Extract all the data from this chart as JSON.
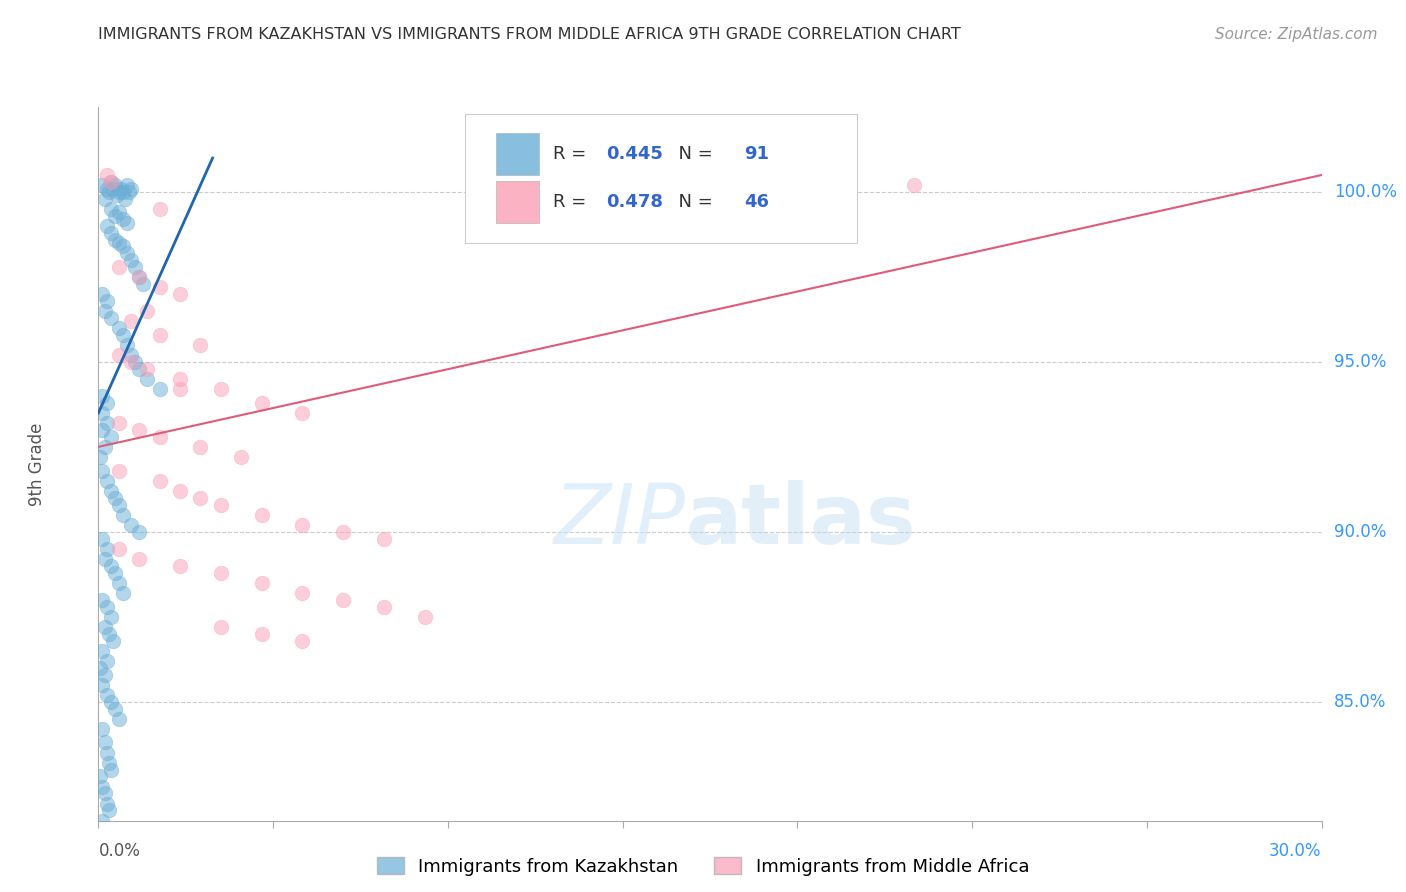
{
  "title": "IMMIGRANTS FROM KAZAKHSTAN VS IMMIGRANTS FROM MIDDLE AFRICA 9TH GRADE CORRELATION CHART",
  "source": "Source: ZipAtlas.com",
  "ylabel": "9th Grade",
  "legend_r_kaz": "0.445",
  "legend_n_kaz": "91",
  "legend_r_mid": "0.478",
  "legend_n_mid": "46",
  "blue_color": "#6baed6",
  "pink_color": "#fa9fb5",
  "blue_line_color": "#2166ac",
  "pink_line_color": "#e05a7a",
  "blue_scatter": [
    [
      0.1,
      100.2
    ],
    [
      0.2,
      100.1
    ],
    [
      0.3,
      100.3
    ],
    [
      0.15,
      99.8
    ],
    [
      0.25,
      100.0
    ],
    [
      0.35,
      100.1
    ],
    [
      0.4,
      100.2
    ],
    [
      0.5,
      100.0
    ],
    [
      0.45,
      99.9
    ],
    [
      0.55,
      100.1
    ],
    [
      0.6,
      100.0
    ],
    [
      0.65,
      99.8
    ],
    [
      0.7,
      100.2
    ],
    [
      0.75,
      100.0
    ],
    [
      0.8,
      100.1
    ],
    [
      0.3,
      99.5
    ],
    [
      0.4,
      99.3
    ],
    [
      0.5,
      99.4
    ],
    [
      0.6,
      99.2
    ],
    [
      0.7,
      99.1
    ],
    [
      0.2,
      99.0
    ],
    [
      0.3,
      98.8
    ],
    [
      0.4,
      98.6
    ],
    [
      0.5,
      98.5
    ],
    [
      0.6,
      98.4
    ],
    [
      0.7,
      98.2
    ],
    [
      0.8,
      98.0
    ],
    [
      0.9,
      97.8
    ],
    [
      1.0,
      97.5
    ],
    [
      1.1,
      97.3
    ],
    [
      0.1,
      97.0
    ],
    [
      0.2,
      96.8
    ],
    [
      0.15,
      96.5
    ],
    [
      0.3,
      96.3
    ],
    [
      0.5,
      96.0
    ],
    [
      0.6,
      95.8
    ],
    [
      0.7,
      95.5
    ],
    [
      0.8,
      95.2
    ],
    [
      0.9,
      95.0
    ],
    [
      1.0,
      94.8
    ],
    [
      1.2,
      94.5
    ],
    [
      1.5,
      94.2
    ],
    [
      0.1,
      94.0
    ],
    [
      0.2,
      93.8
    ],
    [
      0.1,
      93.5
    ],
    [
      0.2,
      93.2
    ],
    [
      0.1,
      93.0
    ],
    [
      0.3,
      92.8
    ],
    [
      0.15,
      92.5
    ],
    [
      0.05,
      92.2
    ],
    [
      0.1,
      91.8
    ],
    [
      0.2,
      91.5
    ],
    [
      0.3,
      91.2
    ],
    [
      0.4,
      91.0
    ],
    [
      0.5,
      90.8
    ],
    [
      0.6,
      90.5
    ],
    [
      0.8,
      90.2
    ],
    [
      1.0,
      90.0
    ],
    [
      0.1,
      89.8
    ],
    [
      0.2,
      89.5
    ],
    [
      0.15,
      89.2
    ],
    [
      0.3,
      89.0
    ],
    [
      0.4,
      88.8
    ],
    [
      0.5,
      88.5
    ],
    [
      0.6,
      88.2
    ],
    [
      0.1,
      88.0
    ],
    [
      0.2,
      87.8
    ],
    [
      0.3,
      87.5
    ],
    [
      0.15,
      87.2
    ],
    [
      0.25,
      87.0
    ],
    [
      0.35,
      86.8
    ],
    [
      0.1,
      86.5
    ],
    [
      0.2,
      86.2
    ],
    [
      0.05,
      86.0
    ],
    [
      0.15,
      85.8
    ],
    [
      0.1,
      85.5
    ],
    [
      0.2,
      85.2
    ],
    [
      0.3,
      85.0
    ],
    [
      0.4,
      84.8
    ],
    [
      0.5,
      84.5
    ],
    [
      0.1,
      84.2
    ],
    [
      0.15,
      83.8
    ],
    [
      0.2,
      83.5
    ],
    [
      0.25,
      83.2
    ],
    [
      0.3,
      83.0
    ],
    [
      0.05,
      82.8
    ],
    [
      0.1,
      82.5
    ],
    [
      0.15,
      82.3
    ],
    [
      0.2,
      82.0
    ],
    [
      0.25,
      81.8
    ],
    [
      0.1,
      81.5
    ]
  ],
  "pink_scatter": [
    [
      0.2,
      100.5
    ],
    [
      0.3,
      100.3
    ],
    [
      1.5,
      99.5
    ],
    [
      0.5,
      97.8
    ],
    [
      1.0,
      97.5
    ],
    [
      1.5,
      97.2
    ],
    [
      2.0,
      97.0
    ],
    [
      1.2,
      96.5
    ],
    [
      0.8,
      96.2
    ],
    [
      1.5,
      95.8
    ],
    [
      2.5,
      95.5
    ],
    [
      0.5,
      95.2
    ],
    [
      0.8,
      95.0
    ],
    [
      1.2,
      94.8
    ],
    [
      2.0,
      94.5
    ],
    [
      3.0,
      94.2
    ],
    [
      4.0,
      93.8
    ],
    [
      5.0,
      93.5
    ],
    [
      0.5,
      93.2
    ],
    [
      1.0,
      93.0
    ],
    [
      1.5,
      92.8
    ],
    [
      2.5,
      92.5
    ],
    [
      3.5,
      92.2
    ],
    [
      0.5,
      91.8
    ],
    [
      1.5,
      91.5
    ],
    [
      2.0,
      91.2
    ],
    [
      2.5,
      91.0
    ],
    [
      3.0,
      90.8
    ],
    [
      4.0,
      90.5
    ],
    [
      5.0,
      90.2
    ],
    [
      6.0,
      90.0
    ],
    [
      7.0,
      89.8
    ],
    [
      0.5,
      89.5
    ],
    [
      1.0,
      89.2
    ],
    [
      2.0,
      89.0
    ],
    [
      3.0,
      88.8
    ],
    [
      4.0,
      88.5
    ],
    [
      5.0,
      88.2
    ],
    [
      6.0,
      88.0
    ],
    [
      7.0,
      87.8
    ],
    [
      8.0,
      87.5
    ],
    [
      3.0,
      87.2
    ],
    [
      4.0,
      87.0
    ],
    [
      5.0,
      86.8
    ],
    [
      20.0,
      100.2
    ],
    [
      2.0,
      94.2
    ]
  ],
  "xlim": [
    0.0,
    30.0
  ],
  "ylim": [
    81.5,
    102.5
  ],
  "yticks": [
    85.0,
    90.0,
    95.0,
    100.0
  ],
  "ytick_labels": [
    "85.0%",
    "90.0%",
    "95.0%",
    "100.0%"
  ],
  "grid_yticks": [
    85.0,
    90.0,
    95.0,
    100.0
  ],
  "blue_trend_x": [
    0.0,
    2.8
  ],
  "blue_trend_y": [
    93.5,
    101.0
  ],
  "pink_trend_x": [
    0.0,
    30.0
  ],
  "pink_trend_y": [
    92.5,
    100.5
  ],
  "background_color": "#ffffff",
  "grid_color": "#cccccc",
  "label_kaz": "Immigrants from Kazakhstan",
  "label_mid": "Immigrants from Middle Africa"
}
